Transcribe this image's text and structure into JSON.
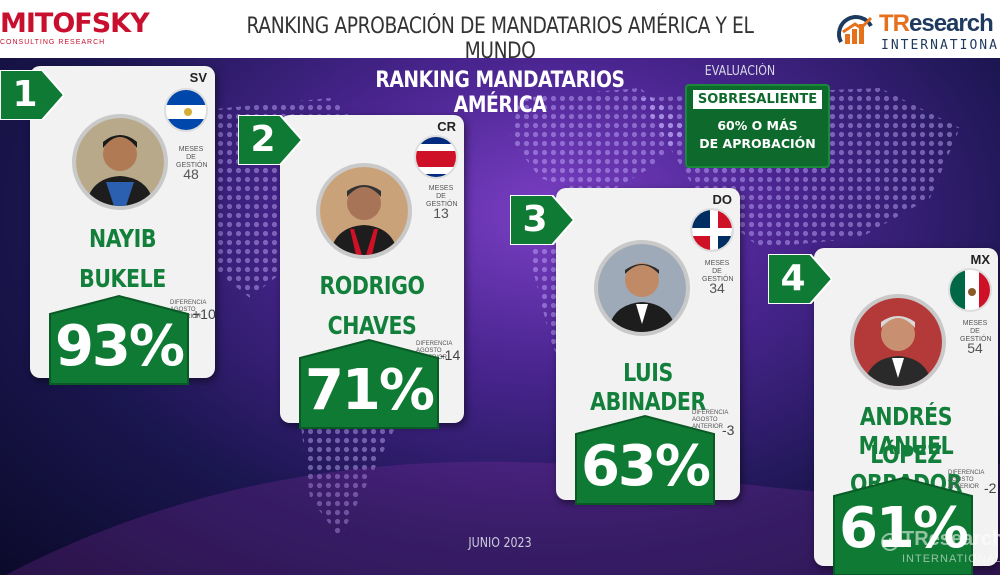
{
  "header": {
    "brand_left": "MITOFSKY",
    "brand_left_sub": "CONSULTING RESEARCH",
    "title": "RANKING APROBACIÓN DE MANDATARIOS AMÉRICA Y EL MUNDO",
    "brand_right_tr": "TR",
    "brand_right_rest": "esearch",
    "brand_right_sub": "INTERNATIONAL"
  },
  "section_title": "RANKING MANDATARIOS AMÉRICA",
  "evaluation": {
    "label": "EVALUACIÓN",
    "level": "SOBRESALIENTE",
    "line1": "60% O MÁS",
    "line2": "DE APROBACIÓN"
  },
  "meses_label_1": "MESES DE",
  "meses_label_2": "GESTIÓN",
  "diff_label_1": "DIFERENCIA AGOSTO",
  "diff_label_2": "ANTERIOR",
  "leaders": [
    {
      "rank": "1",
      "code": "SV",
      "first": "NAYIB",
      "last": "BUKELE",
      "approval": "93%",
      "months": "48",
      "diff": "+10"
    },
    {
      "rank": "2",
      "code": "CR",
      "first": "RODRIGO",
      "last": "CHAVES",
      "approval": "71%",
      "months": "13",
      "diff": "-14"
    },
    {
      "rank": "3",
      "code": "DO",
      "first": "LUIS ABINADER",
      "last": "",
      "approval": "63%",
      "months": "34",
      "diff": "-3"
    },
    {
      "rank": "4",
      "code": "MX",
      "first": "ANDRÉS MANUEL",
      "last": "LÓPEZ OBRADOR",
      "approval": "61%",
      "months": "54",
      "diff": "-2"
    }
  ],
  "footer_date": "JUNIO 2023",
  "watermark_1": "TResearch",
  "watermark_2": "INTERNATIONAL",
  "colors": {
    "green": "#12803a",
    "dark_green": "#0e6a2c",
    "red": "#c8102e",
    "navy": "#1f3a5f",
    "orange": "#e5711d"
  }
}
